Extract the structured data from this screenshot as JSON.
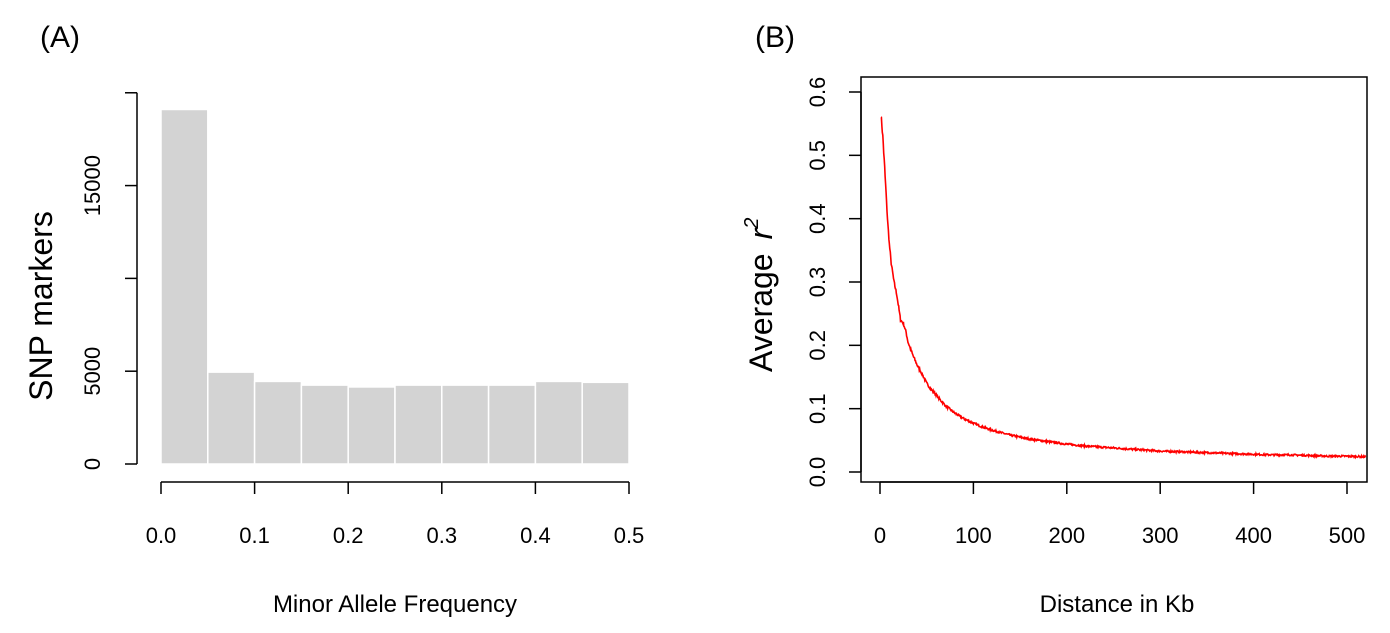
{
  "chart_data": [
    {
      "panel": "(A)",
      "type": "bar",
      "xlabel": "Minor Allele Frequency",
      "ylabel": "SNP markers",
      "x_ticks": [
        "0.0",
        "0.1",
        "0.2",
        "0.3",
        "0.4",
        "0.5"
      ],
      "y_ticks": [
        "0",
        "5000",
        "15000"
      ],
      "bins": [
        [
          0.0,
          0.05
        ],
        [
          0.05,
          0.1
        ],
        [
          0.1,
          0.15
        ],
        [
          0.15,
          0.2
        ],
        [
          0.2,
          0.25
        ],
        [
          0.25,
          0.3
        ],
        [
          0.3,
          0.35
        ],
        [
          0.35,
          0.4
        ],
        [
          0.4,
          0.45
        ],
        [
          0.45,
          0.5
        ]
      ],
      "values": [
        19100,
        4950,
        4450,
        4250,
        4150,
        4250,
        4250,
        4250,
        4450,
        4400
      ],
      "xlim": [
        0,
        0.5
      ],
      "ylim": [
        0,
        20000
      ],
      "bar_color": "#d3d3d3"
    },
    {
      "panel": "(B)",
      "type": "line",
      "xlabel": "Distance in Kb",
      "ylabel_prefix": "Average",
      "ylabel_var": "r",
      "ylabel_sup": "2",
      "x_ticks": [
        "0",
        "100",
        "200",
        "300",
        "400",
        "500"
      ],
      "y_ticks": [
        "0.0",
        "0.1",
        "0.2",
        "0.3",
        "0.4",
        "0.5",
        "0.6"
      ],
      "xlim": [
        0,
        520
      ],
      "ylim": [
        0,
        0.6
      ],
      "line_color": "#ff0000",
      "x": [
        1,
        3,
        5,
        8,
        10,
        12,
        15,
        18,
        20,
        22,
        25,
        28,
        30,
        35,
        40,
        45,
        50,
        55,
        60,
        65,
        70,
        80,
        90,
        100,
        110,
        120,
        130,
        140,
        150,
        160,
        170,
        180,
        190,
        200,
        220,
        240,
        260,
        280,
        300,
        320,
        340,
        360,
        380,
        400,
        420,
        440,
        460,
        480,
        500,
        520
      ],
      "y": [
        0.565,
        0.53,
        0.48,
        0.4,
        0.36,
        0.33,
        0.3,
        0.28,
        0.26,
        0.24,
        0.235,
        0.22,
        0.205,
        0.185,
        0.168,
        0.155,
        0.14,
        0.13,
        0.122,
        0.113,
        0.105,
        0.093,
        0.084,
        0.077,
        0.071,
        0.066,
        0.062,
        0.058,
        0.055,
        0.052,
        0.05,
        0.048,
        0.046,
        0.044,
        0.041,
        0.039,
        0.037,
        0.035,
        0.033,
        0.032,
        0.031,
        0.03,
        0.029,
        0.028,
        0.027,
        0.027,
        0.026,
        0.025,
        0.025,
        0.024
      ]
    }
  ]
}
